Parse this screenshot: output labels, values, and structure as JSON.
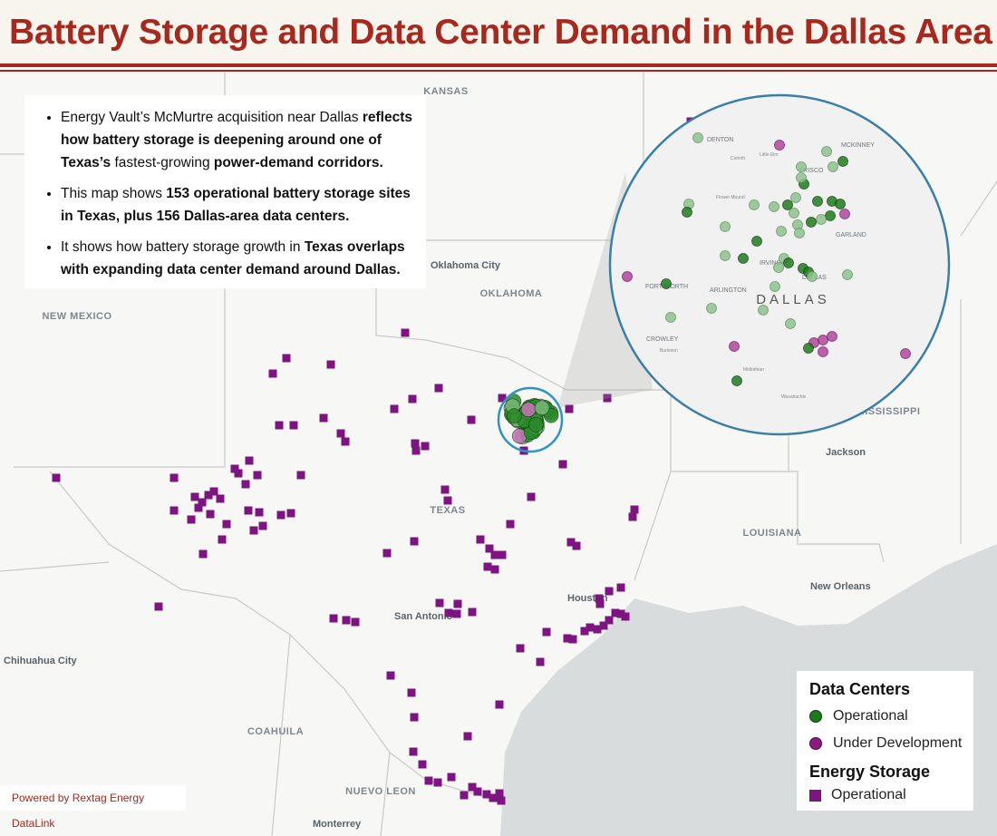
{
  "header": {
    "title": "Battery Storage and Data Center Demand in the Dallas Area"
  },
  "summary": {
    "bullets": [
      [
        {
          "text": "Energy Vault’s McMurtre acquisition near Dallas ",
          "bold": false
        },
        {
          "text": "reflects how battery storage is deepening around one of Texas’s",
          "bold": true
        },
        {
          "text": " fastest-growing ",
          "bold": false
        },
        {
          "text": "power-demand corridors.",
          "bold": true
        }
      ],
      [
        {
          "text": "This map shows ",
          "bold": false
        },
        {
          "text": "153 operational battery storage sites in Texas, plus 156 Dallas-area data centers.",
          "bold": true
        }
      ],
      [
        {
          "text": "It shows how battery storage growth in ",
          "bold": false
        },
        {
          "text": "Texas overlaps with expanding data center demand around Dallas.",
          "bold": true
        }
      ]
    ]
  },
  "map_labels": {
    "kansas": "KANSAS",
    "oklahoma_city": "Oklahoma City",
    "oklahoma": "OKLAHOMA",
    "new_mexico": "NEW MEXICO",
    "texas": "TEXAS",
    "louisiana": "LOUISIANA",
    "mississippi": "MISSISSIPPI",
    "jackson": "Jackson",
    "new_orleans": "New Orleans",
    "houston": "Houston",
    "san_antonio": "San Antonio",
    "chihuahua_city": "Chihuahua City",
    "coahuila": "COAHUILA",
    "nuevo_leon": "NUEVO LEON",
    "monterrey": "Monterrey"
  },
  "inset_labels": {
    "denton": "DENTON",
    "mckinney": "MCKINNEY",
    "frisco": "FRISCO",
    "garland": "GARLAND",
    "irving": "IRVING",
    "dallas": "DALLAS",
    "fort_worth": "FORT WORTH",
    "arlington": "ARLINGTON",
    "crowley": "CROWLEY",
    "dallas_area": "DALLAS",
    "corinth": "Corinth",
    "little_elm": "Little Elm",
    "flower_mound": "Flower Mound",
    "burleson": "Burleson",
    "midlothian": "Midlothian",
    "waxahachie": "Waxahachie"
  },
  "legend": {
    "data_centers": {
      "title": "Data Centers",
      "operational": "Operational",
      "under_development": "Under Development"
    },
    "energy_storage": {
      "title": "Energy Storage",
      "operational": "Operational"
    }
  },
  "credit": "Powered by Rextag Energy DataLink"
}
